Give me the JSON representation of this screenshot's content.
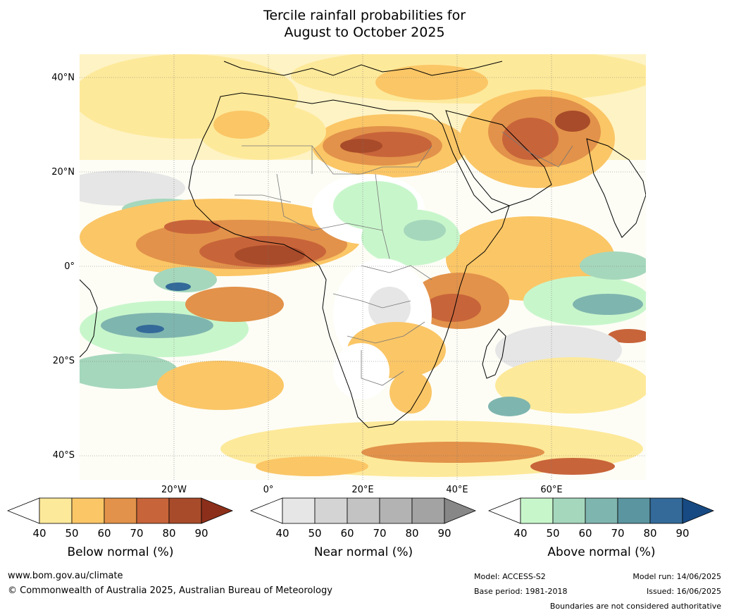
{
  "title": {
    "line1": "Tercile rainfall probabilities for",
    "line2": "August to October 2025"
  },
  "map": {
    "lat_labels": [
      "40°N",
      "20°N",
      "0°",
      "20°S",
      "40°S"
    ],
    "lon_labels": [
      "20°W",
      "0°",
      "20°E",
      "40°E",
      "60°E"
    ]
  },
  "colorbars": [
    {
      "title": "Below normal (%)",
      "ticks": [
        "40",
        "50",
        "60",
        "70",
        "80",
        "90"
      ],
      "colors": [
        "#ffffff",
        "#fde99a",
        "#fbc666",
        "#e2924a",
        "#c8643a",
        "#a84b2a",
        "#8c2f1a"
      ]
    },
    {
      "title": "Near normal (%)",
      "ticks": [
        "40",
        "50",
        "60",
        "70",
        "80",
        "90"
      ],
      "colors": [
        "#ffffff",
        "#e6e6e6",
        "#d4d4d4",
        "#c3c3c3",
        "#b3b3b3",
        "#a3a3a3",
        "#878787"
      ]
    },
    {
      "title": "Above normal (%)",
      "ticks": [
        "40",
        "50",
        "60",
        "70",
        "80",
        "90"
      ],
      "colors": [
        "#ffffff",
        "#c8f6cb",
        "#a5d7bc",
        "#7fb5af",
        "#5b95a0",
        "#336a99",
        "#174a82"
      ]
    }
  ],
  "footer": {
    "website": "www.bom.gov.au/climate",
    "copyright": "© Commonwealth of Australia 2025, Australian Bureau of Meteorology",
    "model": "Model: ACCESS-S2",
    "base_period": "Base period: 1981-2018",
    "model_run": "Model run: 14/06/2025",
    "issued": "Issued: 16/06/2025",
    "disclaimer": "Boundaries are not considered authoritative"
  }
}
